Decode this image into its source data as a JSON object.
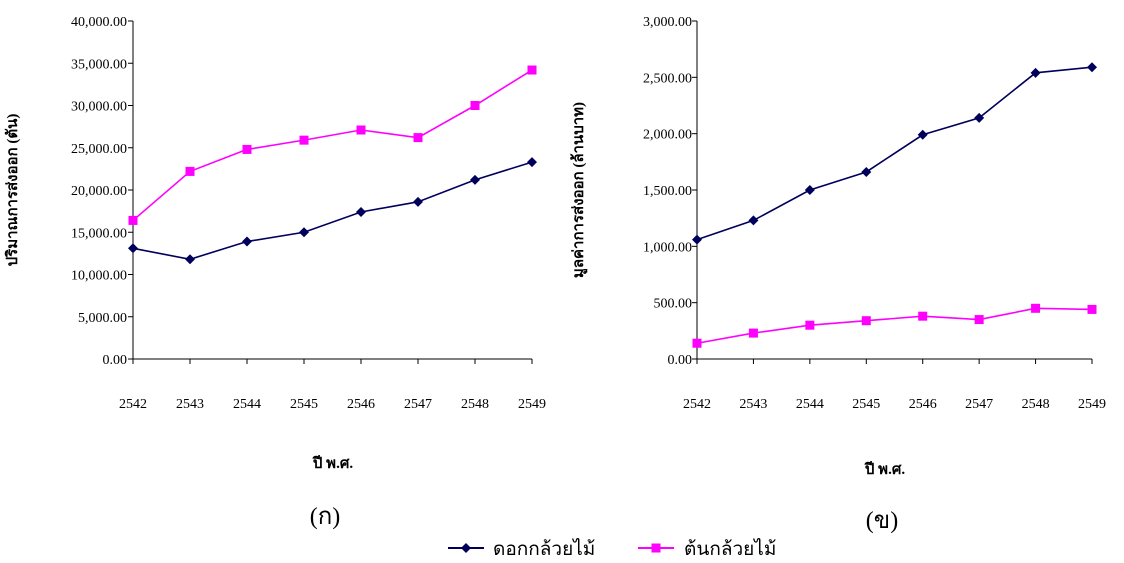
{
  "chart_data": [
    {
      "type": "line",
      "panel_label": "(ก)",
      "xlabel": "ปี พ.ศ.",
      "ylabel": "ปริมาณการส่งออก (ตัน)",
      "ylim": [
        0,
        40000
      ],
      "yticks": [
        "0.00",
        "5,000.00",
        "10,000.00",
        "15,000.00",
        "20,000.00",
        "25,000.00",
        "30,000.00",
        "35,000.00",
        "40,000.00"
      ],
      "categories": [
        "2542",
        "2543",
        "2544",
        "2545",
        "2546",
        "2547",
        "2548",
        "2549"
      ],
      "series": [
        {
          "name": "ดอกกล้วยไม้",
          "values": [
            13100,
            11800,
            13900,
            15000,
            17400,
            18600,
            21200,
            23300
          ]
        },
        {
          "name": "ต้นกล้วยไม้",
          "values": [
            16400,
            22200,
            24800,
            25900,
            27100,
            26200,
            30000,
            34200
          ]
        }
      ]
    },
    {
      "type": "line",
      "panel_label": "(ข)",
      "xlabel": "ปี พ.ศ.",
      "ylabel": "มูลค่าการส่งออก (ล้านบาท)",
      "ylim": [
        0,
        3000
      ],
      "yticks": [
        "0.00",
        "500.00",
        "1,000.00",
        "1,500.00",
        "2,000.00",
        "2,500.00",
        "3,000.00"
      ],
      "categories": [
        "2542",
        "2543",
        "2544",
        "2545",
        "2546",
        "2547",
        "2548",
        "2549"
      ],
      "series": [
        {
          "name": "ดอกกล้วยไม้",
          "values": [
            1060,
            1230,
            1500,
            1660,
            1990,
            2140,
            2540,
            2590
          ]
        },
        {
          "name": "ต้นกล้วยไม้",
          "values": [
            140,
            230,
            300,
            340,
            380,
            350,
            450,
            440
          ]
        }
      ]
    }
  ],
  "legend": {
    "placement": "bottom-center",
    "items": [
      {
        "label": "ดอกกล้วยไม้",
        "color": "#00005c",
        "marker": "diamond"
      },
      {
        "label": "ต้นกล้วยไม้",
        "color": "#ff00ff",
        "marker": "square"
      }
    ]
  }
}
